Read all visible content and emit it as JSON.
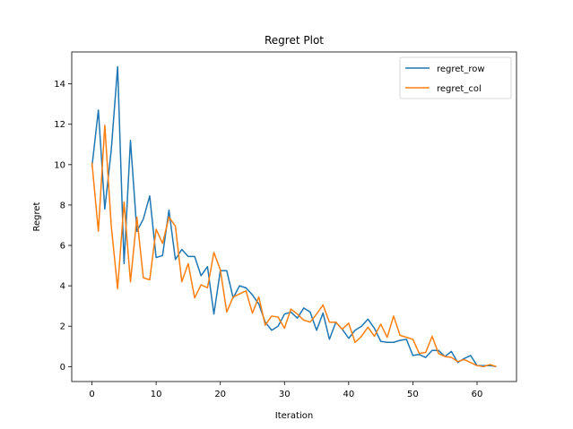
{
  "chart_data": {
    "type": "line",
    "title": "Regret Plot",
    "xlabel": "Iteration",
    "ylabel": "Regret",
    "xlim": [
      -3.15,
      66.15
    ],
    "ylim": [
      -0.74,
      15.58
    ],
    "xticks": [
      0,
      10,
      20,
      30,
      40,
      50,
      60
    ],
    "yticks": [
      0,
      2,
      4,
      6,
      8,
      10,
      12,
      14
    ],
    "grid": false,
    "legend_position": "top-right",
    "series": [
      {
        "name": "regret_row",
        "color": "#1f77b4",
        "x": [
          0,
          1,
          2,
          3,
          4,
          5,
          6,
          7,
          8,
          9,
          10,
          11,
          12,
          13,
          14,
          15,
          16,
          17,
          18,
          19,
          20,
          21,
          22,
          23,
          24,
          25,
          26,
          27,
          28,
          29,
          30,
          31,
          32,
          33,
          34,
          35,
          36,
          37,
          38,
          39,
          40,
          41,
          42,
          43,
          44,
          45,
          46,
          47,
          48,
          49,
          50,
          51,
          52,
          53,
          54,
          55,
          56,
          57,
          58,
          59,
          60,
          61,
          62,
          63
        ],
        "values": [
          9.9,
          12.7,
          7.8,
          10.7,
          14.85,
          5.1,
          11.2,
          6.7,
          7.3,
          8.45,
          5.4,
          5.5,
          7.75,
          5.3,
          5.8,
          5.45,
          5.45,
          4.5,
          4.95,
          2.6,
          4.75,
          4.75,
          3.4,
          4.0,
          3.9,
          3.55,
          3.1,
          2.2,
          1.8,
          2.0,
          2.6,
          2.7,
          2.4,
          2.9,
          2.7,
          1.8,
          2.65,
          1.35,
          2.2,
          1.85,
          1.4,
          1.8,
          2.0,
          2.35,
          1.9,
          1.25,
          1.2,
          1.2,
          1.3,
          1.35,
          0.55,
          0.6,
          0.45,
          0.8,
          0.8,
          0.5,
          0.75,
          0.2,
          0.4,
          0.55,
          0.05,
          0.05,
          0.05,
          0.0
        ]
      },
      {
        "name": "regret_col",
        "color": "#ff7f0e",
        "x": [
          0,
          1,
          2,
          3,
          4,
          5,
          6,
          7,
          8,
          9,
          10,
          11,
          12,
          13,
          14,
          15,
          16,
          17,
          18,
          19,
          20,
          21,
          22,
          23,
          24,
          25,
          26,
          27,
          28,
          29,
          30,
          31,
          32,
          33,
          34,
          35,
          36,
          37,
          38,
          39,
          40,
          41,
          42,
          43,
          44,
          45,
          46,
          47,
          48,
          49,
          50,
          51,
          52,
          53,
          54,
          55,
          56,
          57,
          58,
          59,
          60,
          61,
          62,
          63
        ],
        "values": [
          10.1,
          6.7,
          11.95,
          7.0,
          3.85,
          8.15,
          4.2,
          7.4,
          4.4,
          4.3,
          6.8,
          6.1,
          7.4,
          6.95,
          4.2,
          5.1,
          3.4,
          4.05,
          3.9,
          5.65,
          4.8,
          2.7,
          3.45,
          3.6,
          3.75,
          2.65,
          3.45,
          2.05,
          2.5,
          2.45,
          1.9,
          2.85,
          2.6,
          2.3,
          2.2,
          2.6,
          3.05,
          2.2,
          2.2,
          1.85,
          2.15,
          1.2,
          1.5,
          1.95,
          1.5,
          2.1,
          1.45,
          2.5,
          1.55,
          1.45,
          1.35,
          0.65,
          0.7,
          1.5,
          0.65,
          0.5,
          0.45,
          0.25,
          0.35,
          0.2,
          0.05,
          0.0,
          0.1,
          0.0
        ]
      }
    ]
  }
}
